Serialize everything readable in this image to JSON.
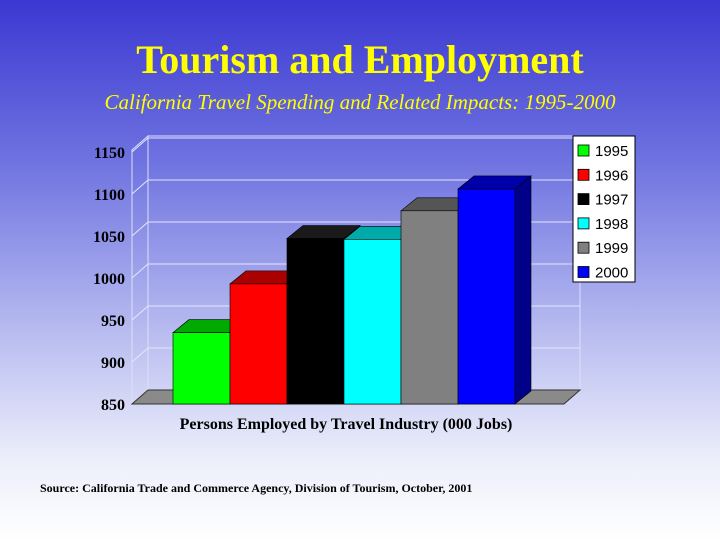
{
  "title": "Tourism and Employment",
  "subtitle": "California Travel Spending and Related Impacts: 1995-2000",
  "source": "Source: California Trade and Commerce Agency, Division of Tourism, October, 2001",
  "chart_data": {
    "type": "bar",
    "categories": [
      "1995",
      "1996",
      "1997",
      "1998",
      "1999",
      "2000"
    ],
    "values": [
      935,
      993,
      1047,
      1046,
      1080,
      1106
    ],
    "colors": [
      "#00ff00",
      "#ff0000",
      "#000000",
      "#00ffff",
      "#808080",
      "#0000ff"
    ],
    "top_colors": [
      "#00aa00",
      "#aa0000",
      "#1a1a1a",
      "#00aaaa",
      "#555555",
      "#0000aa"
    ],
    "side_colors": [
      "#008800",
      "#880000",
      "#111111",
      "#008888",
      "#444444",
      "#000088"
    ],
    "xlabel": "Persons Employed by Travel Industry (000 Jobs)",
    "ylim": [
      850,
      1150
    ],
    "yticks": [
      "850",
      "900",
      "950",
      "1000",
      "1050",
      "1100",
      "1150"
    ],
    "legend": [
      "1995",
      "1996",
      "1997",
      "1998",
      "1999",
      "2000"
    ],
    "legend_position": "top-right",
    "grid": true
  }
}
